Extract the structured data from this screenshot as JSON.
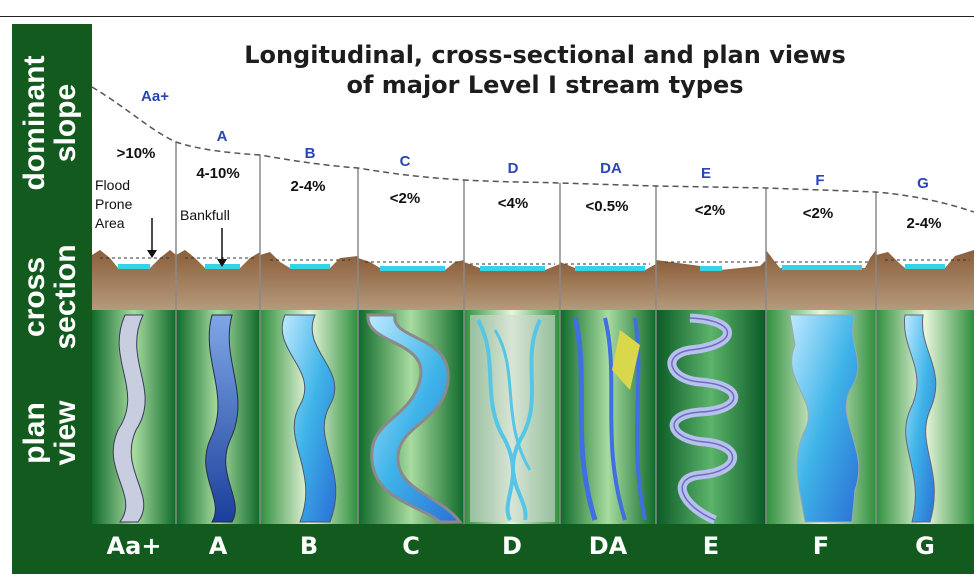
{
  "title": {
    "line1": "Longitudinal, cross-sectional and plan views",
    "line2": "of major Level I stream types"
  },
  "row_labels": {
    "slope": "dominant slope",
    "cross_section": "cross section",
    "plan_view": "plan view"
  },
  "annotations": {
    "flood_prone_area": "Flood Prone Area",
    "bankfull": "Bankfull"
  },
  "streams": [
    {
      "code": "Aa+",
      "slope": ">10%"
    },
    {
      "code": "A",
      "slope": "4-10%"
    },
    {
      "code": "B",
      "slope": "2-4%"
    },
    {
      "code": "C",
      "slope": "<2%"
    },
    {
      "code": "D",
      "slope": "<4%"
    },
    {
      "code": "DA",
      "slope": "<0.5%"
    },
    {
      "code": "E",
      "slope": "<2%"
    },
    {
      "code": "F",
      "slope": "<2%"
    },
    {
      "code": "G",
      "slope": "2-4%"
    }
  ],
  "colors": {
    "frame_green": "#135a1f",
    "type_code_blue": "#2a46b5",
    "water": "#3fb4e8",
    "soil": "#7a5433"
  }
}
